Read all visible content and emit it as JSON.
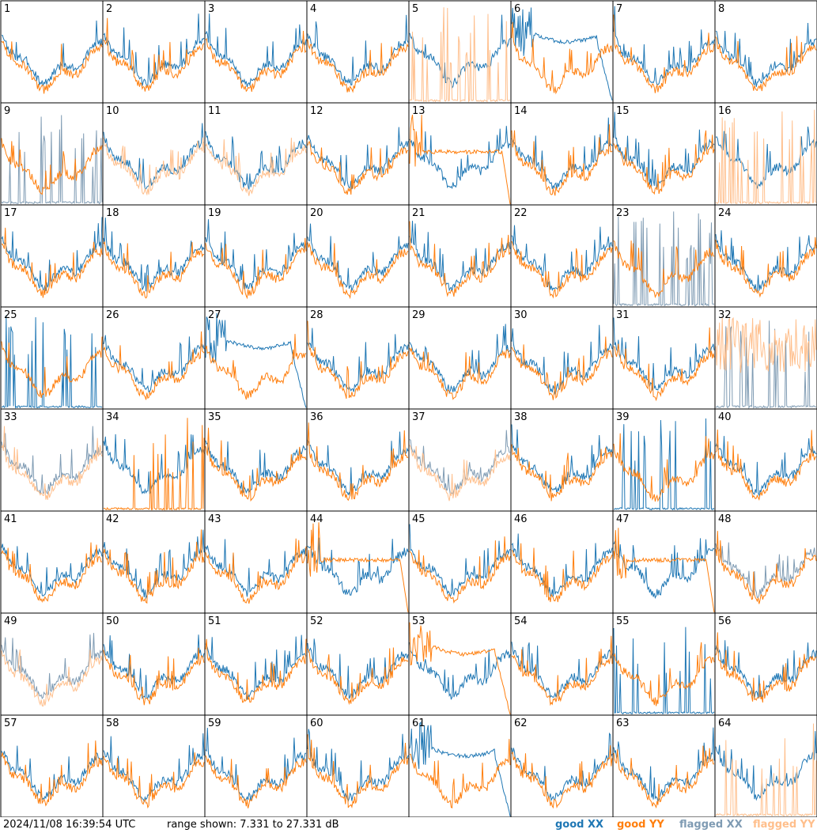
{
  "footer": {
    "timestamp": "2024/11/08 16:39:54 UTC",
    "range_text": "range shown: 7.331 to 27.331 dB",
    "legend": {
      "good_xx": "good XX",
      "good_yy": "good YY",
      "flagged_xx": "flagged XX",
      "flagged_yy": "flagged YY"
    }
  },
  "colors": {
    "good_xx": "#1f77b4",
    "good_yy": "#ff7f0e",
    "flagged_xx": "#7f9bb3",
    "flagged_yy": "#ffbf8c"
  },
  "chart_data": {
    "type": "line",
    "layout": "8x8 grid of spectrum panels",
    "ylim": [
      7.331,
      27.331
    ],
    "y_units": "dB",
    "panels": [
      {
        "id": "1",
        "xx": "good",
        "yy": "good",
        "xx_shape": "normal",
        "yy_shape": "normal"
      },
      {
        "id": "2",
        "xx": "good",
        "yy": "good",
        "xx_shape": "normal",
        "yy_shape": "normal"
      },
      {
        "id": "3",
        "xx": "good",
        "yy": "good",
        "xx_shape": "normal",
        "yy_shape": "normal"
      },
      {
        "id": "4",
        "xx": "good",
        "yy": "good",
        "xx_shape": "normal",
        "yy_shape": "normal"
      },
      {
        "id": "5",
        "xx": "good",
        "yy": "flagged",
        "xx_shape": "normal",
        "yy_shape": "spiky"
      },
      {
        "id": "6",
        "xx": "good",
        "yy": "good",
        "xx_shape": "rolloff",
        "yy_shape": "normal"
      },
      {
        "id": "7",
        "xx": "good",
        "yy": "good",
        "xx_shape": "normal",
        "yy_shape": "normal"
      },
      {
        "id": "8",
        "xx": "good",
        "yy": "good",
        "xx_shape": "normal",
        "yy_shape": "normal"
      },
      {
        "id": "9",
        "xx": "flagged",
        "yy": "good",
        "xx_shape": "spiky",
        "yy_shape": "normal"
      },
      {
        "id": "10",
        "xx": "good",
        "yy": "flagged",
        "xx_shape": "normal",
        "yy_shape": "normal"
      },
      {
        "id": "11",
        "xx": "good",
        "yy": "flagged",
        "xx_shape": "normal",
        "yy_shape": "normal"
      },
      {
        "id": "12",
        "xx": "good",
        "yy": "good",
        "xx_shape": "normal",
        "yy_shape": "normal"
      },
      {
        "id": "13",
        "xx": "good",
        "yy": "good",
        "xx_shape": "normal",
        "yy_shape": "flat"
      },
      {
        "id": "14",
        "xx": "good",
        "yy": "good",
        "xx_shape": "normal",
        "yy_shape": "normal"
      },
      {
        "id": "15",
        "xx": "good",
        "yy": "good",
        "xx_shape": "normal",
        "yy_shape": "normal"
      },
      {
        "id": "16",
        "xx": "good",
        "yy": "flagged",
        "xx_shape": "normal",
        "yy_shape": "spiky"
      },
      {
        "id": "17",
        "xx": "good",
        "yy": "good",
        "xx_shape": "normal",
        "yy_shape": "normal"
      },
      {
        "id": "18",
        "xx": "good",
        "yy": "good",
        "xx_shape": "normal",
        "yy_shape": "normal"
      },
      {
        "id": "19",
        "xx": "good",
        "yy": "good",
        "xx_shape": "normal",
        "yy_shape": "normal"
      },
      {
        "id": "20",
        "xx": "good",
        "yy": "good",
        "xx_shape": "normal",
        "yy_shape": "normal"
      },
      {
        "id": "21",
        "xx": "good",
        "yy": "good",
        "xx_shape": "normal",
        "yy_shape": "normal"
      },
      {
        "id": "22",
        "xx": "good",
        "yy": "good",
        "xx_shape": "normal",
        "yy_shape": "normal"
      },
      {
        "id": "23",
        "xx": "flagged",
        "yy": "good",
        "xx_shape": "spiky",
        "yy_shape": "normal"
      },
      {
        "id": "24",
        "xx": "good",
        "yy": "good",
        "xx_shape": "normal",
        "yy_shape": "normal"
      },
      {
        "id": "25",
        "xx": "good",
        "yy": "good",
        "xx_shape": "spiky",
        "yy_shape": "normal"
      },
      {
        "id": "26",
        "xx": "good",
        "yy": "good",
        "xx_shape": "normal",
        "yy_shape": "normal"
      },
      {
        "id": "27",
        "xx": "good",
        "yy": "good",
        "xx_shape": "rolloff",
        "yy_shape": "normal"
      },
      {
        "id": "28",
        "xx": "good",
        "yy": "good",
        "xx_shape": "normal",
        "yy_shape": "normal"
      },
      {
        "id": "29",
        "xx": "good",
        "yy": "good",
        "xx_shape": "normal",
        "yy_shape": "normal"
      },
      {
        "id": "30",
        "xx": "good",
        "yy": "good",
        "xx_shape": "normal",
        "yy_shape": "normal"
      },
      {
        "id": "31",
        "xx": "good",
        "yy": "good",
        "xx_shape": "normal",
        "yy_shape": "normal"
      },
      {
        "id": "32",
        "xx": "flagged",
        "yy": "flagged",
        "xx_shape": "spiky",
        "yy_shape": "noisy"
      },
      {
        "id": "33",
        "xx": "flagged",
        "yy": "flagged",
        "xx_shape": "normal",
        "yy_shape": "normal"
      },
      {
        "id": "34",
        "xx": "good",
        "yy": "good",
        "xx_shape": "normal",
        "yy_shape": "spiky"
      },
      {
        "id": "35",
        "xx": "good",
        "yy": "good",
        "xx_shape": "normal",
        "yy_shape": "normal"
      },
      {
        "id": "36",
        "xx": "good",
        "yy": "good",
        "xx_shape": "normal",
        "yy_shape": "normal"
      },
      {
        "id": "37",
        "xx": "flagged",
        "yy": "flagged",
        "xx_shape": "normal",
        "yy_shape": "normal"
      },
      {
        "id": "38",
        "xx": "good",
        "yy": "good",
        "xx_shape": "normal",
        "yy_shape": "normal"
      },
      {
        "id": "39",
        "xx": "good",
        "yy": "good",
        "xx_shape": "spiky",
        "yy_shape": "normal"
      },
      {
        "id": "40",
        "xx": "good",
        "yy": "good",
        "xx_shape": "normal",
        "yy_shape": "normal"
      },
      {
        "id": "41",
        "xx": "good",
        "yy": "good",
        "xx_shape": "normal",
        "yy_shape": "normal"
      },
      {
        "id": "42",
        "xx": "good",
        "yy": "good",
        "xx_shape": "normal",
        "yy_shape": "normal"
      },
      {
        "id": "43",
        "xx": "good",
        "yy": "good",
        "xx_shape": "normal",
        "yy_shape": "normal"
      },
      {
        "id": "44",
        "xx": "good",
        "yy": "good",
        "xx_shape": "normal",
        "yy_shape": "flat"
      },
      {
        "id": "45",
        "xx": "good",
        "yy": "good",
        "xx_shape": "normal",
        "yy_shape": "normal"
      },
      {
        "id": "46",
        "xx": "good",
        "yy": "good",
        "xx_shape": "normal",
        "yy_shape": "normal"
      },
      {
        "id": "47",
        "xx": "good",
        "yy": "good",
        "xx_shape": "normal",
        "yy_shape": "flat"
      },
      {
        "id": "48",
        "xx": "flagged",
        "yy": "good",
        "xx_shape": "normal",
        "yy_shape": "normal"
      },
      {
        "id": "49",
        "xx": "flagged",
        "yy": "flagged",
        "xx_shape": "normal",
        "yy_shape": "normal"
      },
      {
        "id": "50",
        "xx": "good",
        "yy": "good",
        "xx_shape": "normal",
        "yy_shape": "normal"
      },
      {
        "id": "51",
        "xx": "good",
        "yy": "good",
        "xx_shape": "normal",
        "yy_shape": "normal"
      },
      {
        "id": "52",
        "xx": "good",
        "yy": "good",
        "xx_shape": "normal",
        "yy_shape": "normal"
      },
      {
        "id": "53",
        "xx": "good",
        "yy": "good",
        "xx_shape": "normal",
        "yy_shape": "rolloff"
      },
      {
        "id": "54",
        "xx": "good",
        "yy": "good",
        "xx_shape": "normal",
        "yy_shape": "normal"
      },
      {
        "id": "55",
        "xx": "good",
        "yy": "good",
        "xx_shape": "spiky",
        "yy_shape": "normal"
      },
      {
        "id": "56",
        "xx": "good",
        "yy": "good",
        "xx_shape": "normal",
        "yy_shape": "normal"
      },
      {
        "id": "57",
        "xx": "good",
        "yy": "good",
        "xx_shape": "normal",
        "yy_shape": "normal"
      },
      {
        "id": "58",
        "xx": "good",
        "yy": "good",
        "xx_shape": "normal",
        "yy_shape": "normal"
      },
      {
        "id": "59",
        "xx": "good",
        "yy": "good",
        "xx_shape": "normal",
        "yy_shape": "normal"
      },
      {
        "id": "60",
        "xx": "good",
        "yy": "good",
        "xx_shape": "normal",
        "yy_shape": "normal"
      },
      {
        "id": "61",
        "xx": "good",
        "yy": "good",
        "xx_shape": "rolloff",
        "yy_shape": "normal"
      },
      {
        "id": "62",
        "xx": "good",
        "yy": "good",
        "xx_shape": "normal",
        "yy_shape": "normal"
      },
      {
        "id": "63",
        "xx": "good",
        "yy": "good",
        "xx_shape": "normal",
        "yy_shape": "normal"
      },
      {
        "id": "64",
        "xx": "good",
        "yy": "flagged",
        "xx_shape": "normal",
        "yy_shape": "spiky"
      }
    ]
  }
}
